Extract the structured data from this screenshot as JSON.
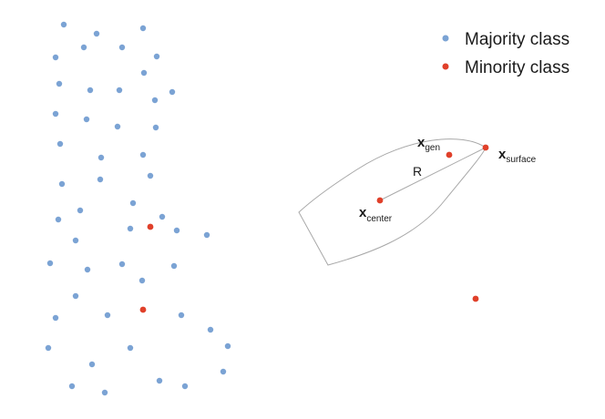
{
  "colors": {
    "majority": "#7ba3d4",
    "minority": "#e0402a",
    "outline": "#a8a8a8"
  },
  "legend": {
    "majority_label": "Majority class",
    "minority_label": "Minority class"
  },
  "labels": {
    "gen_main": "x",
    "gen_sub": "gen",
    "surface_main": "x",
    "surface_sub": "surface",
    "center_main": "x",
    "center_sub": "center",
    "radius": "R"
  }
}
